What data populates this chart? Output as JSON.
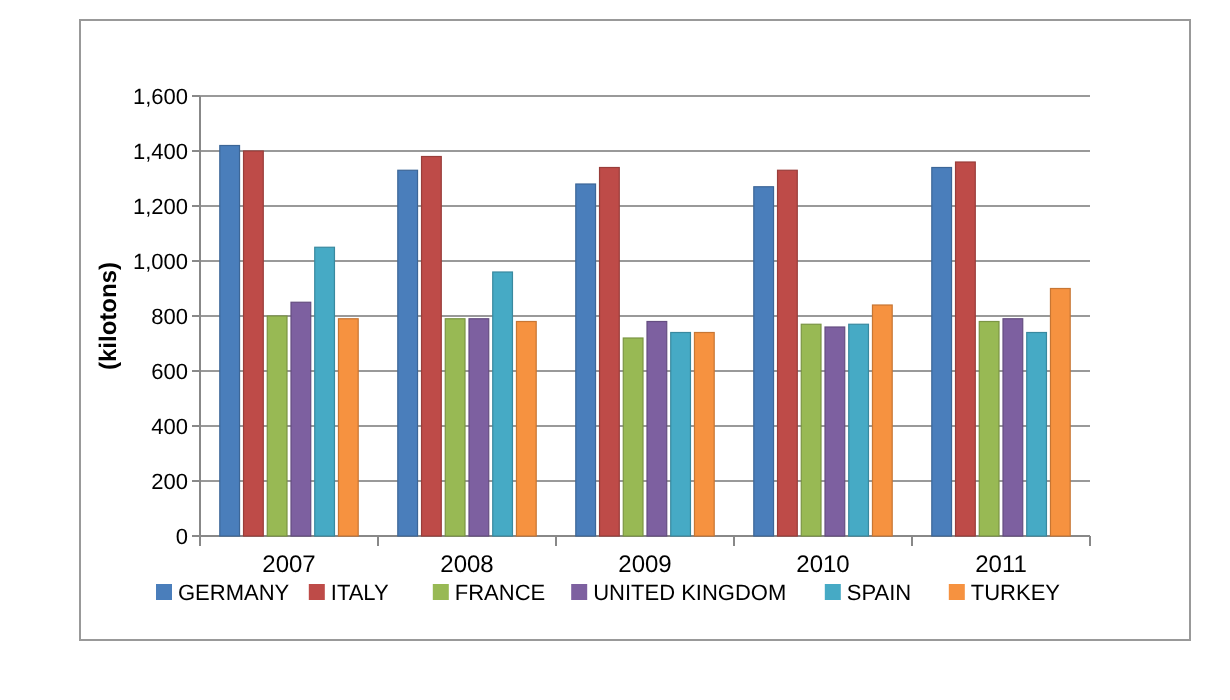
{
  "chart_data": {
    "type": "bar",
    "ylabel": "(kilotons)",
    "categories": [
      "2007",
      "2008",
      "2009",
      "2010",
      "2011"
    ],
    "series": [
      {
        "name": "GERMANY",
        "color": "#4a7ebb",
        "values": [
          1420,
          1330,
          1280,
          1270,
          1340
        ]
      },
      {
        "name": "ITALY",
        "color": "#be4b48",
        "values": [
          1400,
          1380,
          1340,
          1330,
          1360
        ]
      },
      {
        "name": "FRANCE",
        "color": "#98b954",
        "values": [
          800,
          790,
          720,
          770,
          780
        ]
      },
      {
        "name": "UNITED KINGDOM",
        "color": "#7d60a0",
        "values": [
          850,
          790,
          780,
          760,
          790
        ]
      },
      {
        "name": "SPAIN",
        "color": "#46aac5",
        "values": [
          1050,
          960,
          740,
          770,
          740
        ]
      },
      {
        "name": "TURKEY",
        "color": "#f69240",
        "values": [
          790,
          780,
          740,
          840,
          900
        ]
      }
    ],
    "ylim": [
      0,
      1600
    ],
    "yticks": [
      0,
      {
        "value": 200,
        "label": "200"
      },
      {
        "value": 400,
        "label": "400"
      },
      {
        "value": 600,
        "label": "600"
      },
      {
        "value": 800,
        "label": "800"
      },
      {
        "value": 1000,
        "label": "1,000"
      },
      {
        "value": 1200,
        "label": "1,200"
      },
      {
        "value": 1400,
        "label": "1,400"
      },
      {
        "value": 1600,
        "label": "1,600"
      }
    ],
    "grid": "y",
    "legend": "bottom"
  }
}
